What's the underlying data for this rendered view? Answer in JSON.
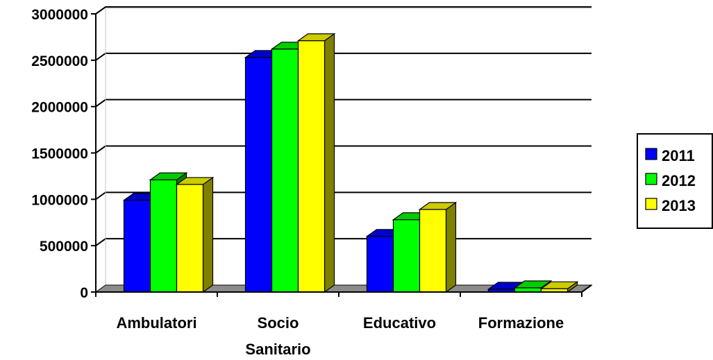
{
  "chart_data": {
    "type": "bar",
    "categories": [
      "Ambulatori",
      "Socio Sanitario",
      "Educativo",
      "Formazione"
    ],
    "category_lines": [
      [
        "Ambulatori"
      ],
      [
        "Socio",
        "Sanitario"
      ],
      [
        "Educativo"
      ],
      [
        "Formazione"
      ]
    ],
    "series": [
      {
        "name": "2011",
        "color": "#0000FF",
        "values": [
          990000,
          2530000,
          600000,
          30000
        ]
      },
      {
        "name": "2012",
        "color": "#00FF00",
        "values": [
          1210000,
          2620000,
          780000,
          45000
        ]
      },
      {
        "name": "2013",
        "color": "#FFFF00",
        "values": [
          1160000,
          2710000,
          890000,
          35000
        ]
      }
    ],
    "yticks": [
      "0",
      "500000",
      "1000000",
      "1500000",
      "2000000",
      "2500000",
      "3000000"
    ],
    "ylim": [
      0,
      3000000
    ],
    "grid": true,
    "legend_position": "right",
    "title": "",
    "xlabel": "",
    "ylabel": ""
  }
}
